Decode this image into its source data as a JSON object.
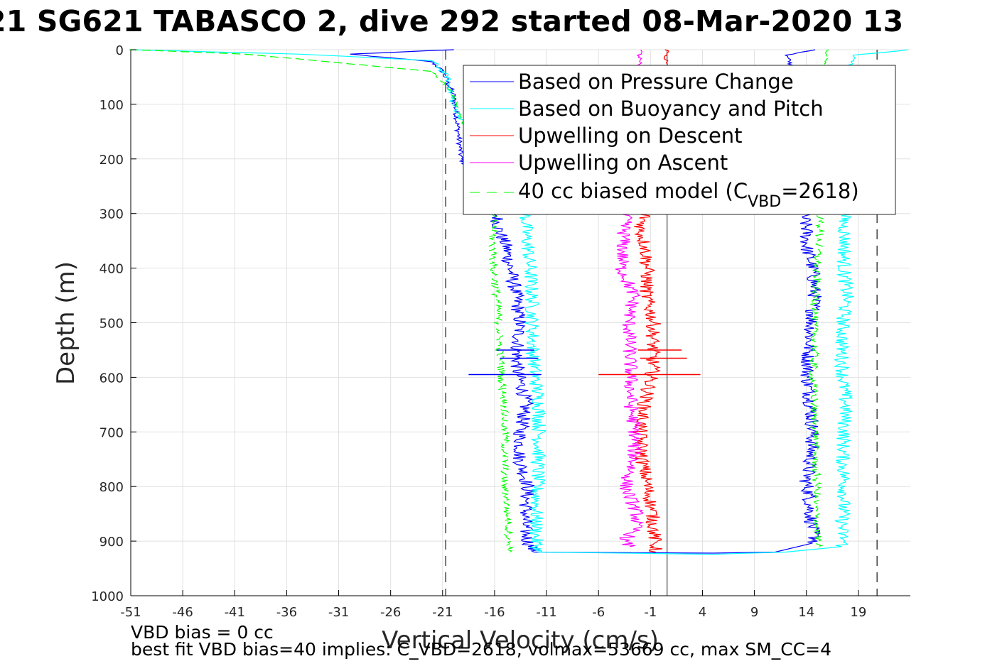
{
  "chart_data": {
    "type": "line",
    "title": "21 SG621 TABASCO 2, dive 292 started 08-Mar-2020 13",
    "xlabel": "Vertical Velocity (cm/s)",
    "ylabel": "Depth (m)",
    "xlim": [
      -51,
      24
    ],
    "ylim": [
      0,
      1000
    ],
    "y_reversed": true,
    "grid": true,
    "xticks": [
      "-51",
      "-46",
      "-41",
      "-36",
      "-31",
      "-26",
      "-21",
      "-16",
      "-11",
      "-6",
      "-1",
      "4",
      "9",
      "14",
      "19"
    ],
    "yticks": [
      "0",
      "100",
      "200",
      "300",
      "400",
      "500",
      "600",
      "700",
      "800",
      "900",
      "1000"
    ],
    "legend_position": "top-right",
    "legend": {
      "pressure": "Based on Pressure Change",
      "buoyancy": "Based on Buoyancy and Pitch",
      "up_descent": "Upwelling on Descent",
      "up_ascent": "Upwelling on Ascent",
      "model_prefix": "40 cc biased model (C",
      "model_sub": "VBD",
      "model_suffix": "=2618)"
    },
    "reference_lines": {
      "dashed_x": [
        -20.7,
        20.8
      ],
      "solid_x": 0.6
    },
    "series": [
      {
        "name": "Based on Pressure Change",
        "color": "#0000ff",
        "descent": [
          [
            -20,
            0
          ],
          [
            -30,
            8
          ],
          [
            -22,
            22
          ],
          [
            -21,
            40
          ],
          [
            -20.5,
            60
          ],
          [
            -20,
            80
          ],
          [
            -19.8,
            100
          ],
          [
            -19.2,
            200
          ],
          [
            -15.8,
            300
          ],
          [
            -15.6,
            330
          ],
          [
            -14.9,
            360
          ],
          [
            -14.5,
            400
          ],
          [
            -13.9,
            450
          ],
          [
            -13.6,
            500
          ],
          [
            -13.8,
            550
          ],
          [
            -13.8,
            590
          ],
          [
            -13.3,
            620
          ],
          [
            -13,
            650
          ],
          [
            -13.5,
            700
          ],
          [
            -13.6,
            750
          ],
          [
            -12.8,
            800
          ],
          [
            -13,
            840
          ],
          [
            -13.1,
            870
          ],
          [
            -12.8,
            900
          ],
          [
            -12.2,
            920
          ]
        ],
        "ascent": [
          [
            15,
            0
          ],
          [
            12,
            10
          ],
          [
            13.5,
            60
          ],
          [
            13.9,
            200
          ],
          [
            13.7,
            300
          ],
          [
            14,
            330
          ],
          [
            14,
            360
          ],
          [
            14.6,
            400
          ],
          [
            14.8,
            450
          ],
          [
            14.5,
            500
          ],
          [
            14.2,
            550
          ],
          [
            14.1,
            600
          ],
          [
            14.4,
            650
          ],
          [
            14.6,
            700
          ],
          [
            14.4,
            750
          ],
          [
            14,
            790
          ],
          [
            14.3,
            820
          ],
          [
            14.4,
            850
          ],
          [
            14.6,
            880
          ],
          [
            14.9,
            900
          ],
          [
            14.3,
            905
          ]
        ],
        "bottom": [
          [
            -12.2,
            920
          ],
          [
            5,
            922
          ],
          [
            11,
            920
          ],
          [
            14.3,
            905
          ]
        ]
      },
      {
        "name": "Based on Buoyancy and Pitch",
        "color": "#00ffff",
        "descent": [
          [
            -51,
            0
          ],
          [
            -35,
            8
          ],
          [
            -22,
            20
          ],
          [
            -20.5,
            50
          ],
          [
            -20,
            100
          ],
          [
            -17,
            200
          ],
          [
            -13,
            300
          ],
          [
            -13,
            330
          ],
          [
            -12.8,
            360
          ],
          [
            -12.6,
            400
          ],
          [
            -12.4,
            450
          ],
          [
            -12.4,
            500
          ],
          [
            -12.3,
            550
          ],
          [
            -12.1,
            600
          ],
          [
            -11.7,
            650
          ],
          [
            -11.7,
            700
          ],
          [
            -11.8,
            750
          ],
          [
            -11.9,
            800
          ],
          [
            -12,
            850
          ],
          [
            -12,
            900
          ],
          [
            -11.8,
            920
          ]
        ],
        "ascent": [
          [
            24,
            0
          ],
          [
            18.5,
            10
          ],
          [
            18,
            60
          ],
          [
            17.5,
            200
          ],
          [
            17.6,
            300
          ],
          [
            17.7,
            350
          ],
          [
            17.6,
            400
          ],
          [
            17.9,
            450
          ],
          [
            17.5,
            500
          ],
          [
            17.4,
            550
          ],
          [
            17.5,
            600
          ],
          [
            17.8,
            650
          ],
          [
            17.6,
            700
          ],
          [
            17.5,
            750
          ],
          [
            17.7,
            800
          ],
          [
            17.5,
            850
          ],
          [
            17.4,
            880
          ],
          [
            17.6,
            900
          ],
          [
            17.4,
            910
          ]
        ],
        "bottom": [
          [
            -11.8,
            920
          ],
          [
            5,
            924
          ],
          [
            12,
            920
          ],
          [
            17.4,
            910
          ]
        ]
      },
      {
        "name": "Upwelling on Descent",
        "color": "#ff0000",
        "points": [
          [
            0.6,
            0
          ],
          [
            0,
            100
          ],
          [
            -0.5,
            200
          ],
          [
            -1.5,
            300
          ],
          [
            -2,
            330
          ],
          [
            -1.5,
            360
          ],
          [
            -1.3,
            400
          ],
          [
            -1.4,
            450
          ],
          [
            -0.7,
            500
          ],
          [
            -0.8,
            550
          ],
          [
            -0.8,
            590
          ],
          [
            -1.2,
            620
          ],
          [
            -1.6,
            650
          ],
          [
            -2,
            700
          ],
          [
            -1.8,
            750
          ],
          [
            -1.3,
            800
          ],
          [
            -0.8,
            850
          ],
          [
            -0.6,
            900
          ],
          [
            -0.5,
            920
          ]
        ]
      },
      {
        "name": "Upwelling on Ascent",
        "color": "#ff00ff",
        "points": [
          [
            -2,
            0
          ],
          [
            -2.5,
            100
          ],
          [
            -3.4,
            300
          ],
          [
            -3.6,
            350
          ],
          [
            -3.8,
            400
          ],
          [
            -2.6,
            450
          ],
          [
            -3.1,
            500
          ],
          [
            -3,
            550
          ],
          [
            -2.9,
            600
          ],
          [
            -2.9,
            650
          ],
          [
            -2.5,
            700
          ],
          [
            -2.6,
            750
          ],
          [
            -3.4,
            800
          ],
          [
            -2.3,
            850
          ],
          [
            -2.5,
            880
          ],
          [
            -3.6,
            900
          ],
          [
            -3,
            910
          ]
        ]
      },
      {
        "name": "40 cc biased model (CVBD=2618)",
        "color": "#00ff00",
        "dashed": true,
        "descent": [
          [
            -51,
            0
          ],
          [
            -40,
            8
          ],
          [
            -22,
            40
          ],
          [
            -20,
            80
          ],
          [
            -18,
            200
          ],
          [
            -16,
            300
          ],
          [
            -16.2,
            350
          ],
          [
            -16.1,
            400
          ],
          [
            -15.8,
            450
          ],
          [
            -15.6,
            500
          ],
          [
            -15.5,
            550
          ],
          [
            -15.3,
            600
          ],
          [
            -15.1,
            650
          ],
          [
            -15,
            700
          ],
          [
            -15,
            750
          ],
          [
            -15,
            800
          ],
          [
            -14.8,
            850
          ],
          [
            -14.6,
            900
          ],
          [
            -14.5,
            920
          ]
        ],
        "ascent": [
          [
            16,
            0
          ],
          [
            15.5,
            60
          ],
          [
            15.3,
            200
          ],
          [
            15.4,
            300
          ],
          [
            15.2,
            350
          ],
          [
            15,
            400
          ],
          [
            14.9,
            450
          ],
          [
            14.7,
            500
          ],
          [
            14.8,
            550
          ],
          [
            14.6,
            600
          ],
          [
            14.8,
            650
          ],
          [
            14.8,
            700
          ],
          [
            14.9,
            750
          ],
          [
            15,
            800
          ],
          [
            14.9,
            850
          ],
          [
            15,
            880
          ],
          [
            15.1,
            910
          ]
        ]
      }
    ]
  },
  "notes": {
    "line1": "VBD bias = 0 cc",
    "line2": "best fit VBD bias=40 implies: C_VBD=2618, volmax=53669 cc, max SM_CC=4"
  }
}
